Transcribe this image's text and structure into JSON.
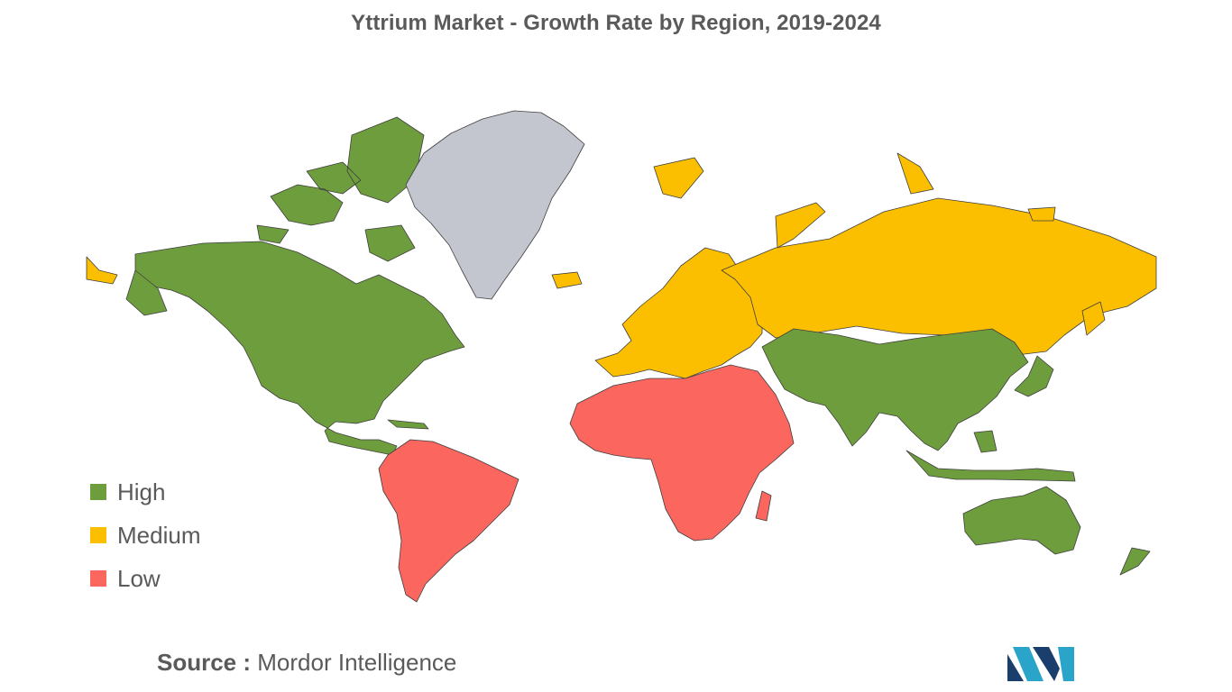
{
  "title": "Yttrium Market - Growth Rate by Region, 2019-2024",
  "legend": {
    "items": [
      {
        "label": "High",
        "color": "#6e9d3d"
      },
      {
        "label": "Medium",
        "color": "#fbbf00"
      },
      {
        "label": "Low",
        "color": "#fb665e"
      }
    ]
  },
  "no_data_color": "#c3c6ce",
  "regions": {
    "north_america": "High",
    "asia_pacific": "High",
    "europe": "Medium",
    "russia": "Medium",
    "south_america": "Low",
    "middle_east_africa": "Low",
    "greenland": "No data"
  },
  "source": {
    "label": "Source :",
    "text": "Mordor Intelligence"
  }
}
